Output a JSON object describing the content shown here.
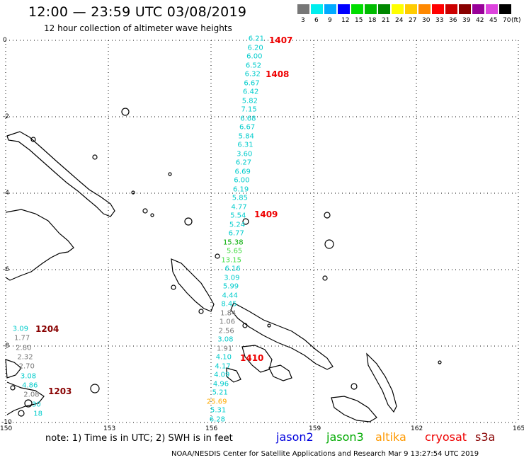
{
  "header": {
    "title": "12:00 — 23:59 UTC 03/08/2019",
    "subtitle": "12 hour collection of altimeter wave heights"
  },
  "color_scale": {
    "swatches": [
      {
        "color": "#777777",
        "label": "3"
      },
      {
        "color": "#00eeee",
        "label": "6"
      },
      {
        "color": "#00aaff",
        "label": "9"
      },
      {
        "color": "#0000ff",
        "label": "12"
      },
      {
        "color": "#00dd00",
        "label": "15"
      },
      {
        "color": "#00bb00",
        "label": "18"
      },
      {
        "color": "#008800",
        "label": "21"
      },
      {
        "color": "#ffff00",
        "label": "24"
      },
      {
        "color": "#ffcc00",
        "label": "27"
      },
      {
        "color": "#ff8800",
        "label": "30"
      },
      {
        "color": "#ff0000",
        "label": "33"
      },
      {
        "color": "#cc0000",
        "label": "36"
      },
      {
        "color": "#880000",
        "label": "39"
      },
      {
        "color": "#990099",
        "label": "42"
      },
      {
        "color": "#dd44dd",
        "label": "45"
      },
      {
        "color": "#000000",
        "label": "70"
      }
    ],
    "unit": "(ft)"
  },
  "axes": {
    "lat_ticks": [
      "0",
      "-2",
      "-4",
      "-6",
      "-8",
      "-10"
    ],
    "lon_ticks": [
      "150",
      "153",
      "156",
      "159",
      "162",
      "165"
    ]
  },
  "main_track": [
    {
      "v": "6.21",
      "c": "#00cccc"
    },
    {
      "v": "6.20",
      "c": "#00cccc"
    },
    {
      "v": "6.00",
      "c": "#00cccc"
    },
    {
      "v": "6.52",
      "c": "#00cccc"
    },
    {
      "v": "6.32",
      "c": "#00cccc"
    },
    {
      "v": "6.67",
      "c": "#00cccc"
    },
    {
      "v": "6.42",
      "c": "#00cccc"
    },
    {
      "v": "5.82",
      "c": "#00cccc"
    },
    {
      "v": "7.15",
      "c": "#00cccc"
    },
    {
      "v": "6.68",
      "c": "#00cccc"
    },
    {
      "v": "6.67",
      "c": "#00cccc"
    },
    {
      "v": "5.84",
      "c": "#00cccc"
    },
    {
      "v": "6.31",
      "c": "#00cccc"
    },
    {
      "v": "3.60",
      "c": "#00cccc"
    },
    {
      "v": "6.27",
      "c": "#00cccc"
    },
    {
      "v": "6.69",
      "c": "#00cccc"
    },
    {
      "v": "6.00",
      "c": "#00cccc"
    },
    {
      "v": "6.19",
      "c": "#00cccc"
    },
    {
      "v": "5.85",
      "c": "#00cccc"
    },
    {
      "v": "4.77",
      "c": "#00cccc"
    },
    {
      "v": "5.54",
      "c": "#00cccc"
    },
    {
      "v": "5.24",
      "c": "#00cccc"
    },
    {
      "v": "6.77",
      "c": "#00cccc"
    },
    {
      "v": "15.38",
      "c": "#00aa00"
    },
    {
      "v": "5.65",
      "c": "#44dd44"
    },
    {
      "v": "13.15",
      "c": "#44dd44"
    },
    {
      "v": "6.16",
      "c": "#00cccc"
    },
    {
      "v": "3.09",
      "c": "#00cccc"
    },
    {
      "v": "5.99",
      "c": "#00cccc"
    },
    {
      "v": "4.44",
      "c": "#00cccc"
    },
    {
      "v": "8.45",
      "c": "#00cccc"
    },
    {
      "v": "1.84",
      "c": "#777777"
    },
    {
      "v": "1.06",
      "c": "#777777"
    },
    {
      "v": "2.56",
      "c": "#777777"
    },
    {
      "v": "3.08",
      "c": "#00cccc"
    },
    {
      "v": "1.91",
      "c": "#777777"
    },
    {
      "v": "4.10",
      "c": "#00cccc"
    },
    {
      "v": "4.17",
      "c": "#00cccc"
    },
    {
      "v": "4.09",
      "c": "#00cccc"
    },
    {
      "v": "4.96",
      "c": "#00cccc"
    },
    {
      "v": "5.21",
      "c": "#00cccc"
    },
    {
      "v": "25.69",
      "c": "#ffaa00"
    },
    {
      "v": "5.31",
      "c": "#00cccc"
    },
    {
      "v": "6.28",
      "c": "#00cccc"
    }
  ],
  "west_track": [
    {
      "v": "3.09",
      "c": "#00cccc"
    },
    {
      "v": "1.77",
      "c": "#777777"
    },
    {
      "v": "2.80",
      "c": "#777777"
    },
    {
      "v": "2.32",
      "c": "#777777"
    },
    {
      "v": "2.70",
      "c": "#777777"
    },
    {
      "v": "3.08",
      "c": "#00cccc"
    },
    {
      "v": "4.86",
      "c": "#00cccc"
    },
    {
      "v": "2.08",
      "c": "#777777"
    },
    {
      "v": "30",
      "c": "#00cccc"
    },
    {
      "v": "18",
      "c": "#00cccc"
    }
  ],
  "pass_labels": [
    {
      "text": "1407",
      "color": "#ee0000"
    },
    {
      "text": "1408",
      "color": "#ee0000"
    },
    {
      "text": "1409",
      "color": "#ee0000"
    },
    {
      "text": "1410",
      "color": "#ee0000"
    },
    {
      "text": "1204",
      "color": "#880000"
    },
    {
      "text": "1203",
      "color": "#880000"
    }
  ],
  "footer": {
    "note": "note:  1) Time is in UTC;  2) SWH is in feet",
    "legend": [
      {
        "label": "jason2",
        "color": "#0000dd"
      },
      {
        "label": "jason3",
        "color": "#00aa00"
      },
      {
        "label": "altika",
        "color": "#ff9900"
      },
      {
        "label": "cryosat",
        "color": "#ee0000"
      },
      {
        "label": "s3a",
        "color": "#880000"
      }
    ],
    "credit": "NOAA/NESDIS Center for Satellite Applications and Research    Mar  9 13:27:54 UTC 2019"
  }
}
